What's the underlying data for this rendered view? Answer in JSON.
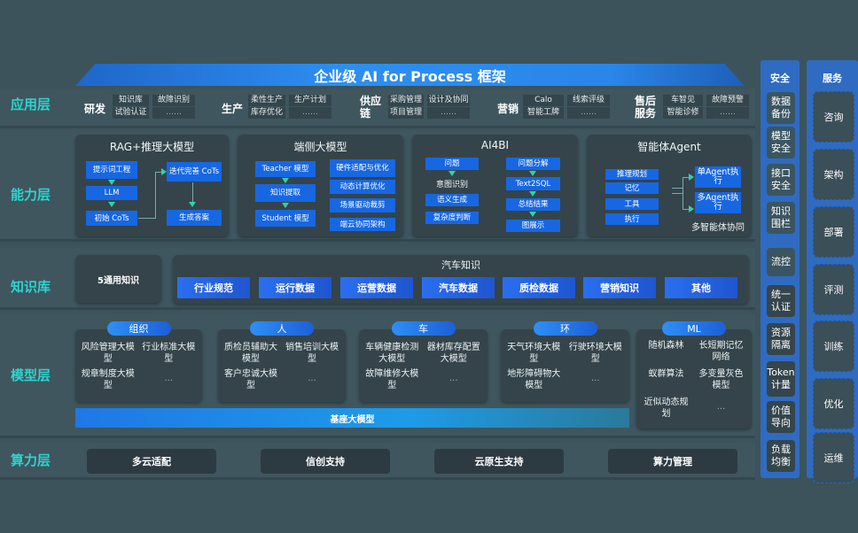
{
  "title": "企业级 AI for Process 框架",
  "layers": {
    "application": "应用层",
    "capability": "能力层",
    "knowledge": "知识库",
    "model": "模型层",
    "compute": "算力层"
  },
  "application_groups": [
    {
      "name": "研发",
      "items": [
        "知识库",
        "试验认证",
        "故障识别",
        "……"
      ]
    },
    {
      "name": "生产",
      "items": [
        "柔性生产",
        "库存优化",
        "生产计划",
        "……"
      ]
    },
    {
      "name": "供应链",
      "items": [
        "采购管理",
        "项目管理",
        "设计及协同",
        "……"
      ]
    },
    {
      "name": "营销",
      "items": [
        "Calo",
        "智能工牌",
        "线索评级",
        "……"
      ]
    },
    {
      "name": "售后服务",
      "items": [
        "车智见",
        "智能诊修",
        "故障预警",
        "……"
      ]
    }
  ],
  "capabilities": {
    "rag": {
      "title": "RAG+推理大模型",
      "boxes": [
        "提示词工程",
        "LLM",
        "初始 CoTs",
        "迭代完善 CoTs",
        "生成答案"
      ]
    },
    "edge": {
      "title": "端侧大模型",
      "boxes": [
        "Teacher 模型",
        "知识提取",
        "Student 模型",
        "硬件适配与优化",
        "动态计算优化",
        "场景驱动裁剪",
        "端云协同架构"
      ]
    },
    "ai4bi": {
      "title": "AI4BI",
      "boxes": [
        "问题",
        "意图识别",
        "语义生成",
        "复杂度判断",
        "问题分解",
        "Text2SQL",
        "总结结果",
        "图展示"
      ]
    },
    "agent": {
      "title": "智能体Agent",
      "boxes": [
        "推理规划",
        "记忆",
        "工具",
        "执行",
        "单Agent执行",
        "多Agent执行"
      ],
      "footer": "多智能体协同"
    }
  },
  "knowledge": {
    "general": "5通用知识",
    "auto_title": "汽车知识",
    "auto_items": [
      "行业规范",
      "运行数据",
      "运营数据",
      "汽车数据",
      "质检数据",
      "营销知识",
      "其他"
    ]
  },
  "model_groups": [
    {
      "name": "组织",
      "items": [
        "风险管理大模型",
        "行业标准大模型",
        "规章制度大模型",
        "..."
      ]
    },
    {
      "name": "人",
      "items": [
        "质检员辅助大模型",
        "销售培训大模型",
        "客户忠诚大模型",
        "..."
      ]
    },
    {
      "name": "车",
      "items": [
        "车辆健康检测大模型",
        "器材库存配置大模型",
        "故障维修大模型",
        "..."
      ]
    },
    {
      "name": "环",
      "items": [
        "天气环境大模型",
        "行驶环境大模型",
        "地形障碍物大模型",
        "..."
      ]
    },
    {
      "name": "ML",
      "items": [
        "随机森林",
        "长短期记忆网络",
        "蚁群算法",
        "多变量灰色模型",
        "近似动态规划",
        "..."
      ]
    }
  ],
  "base_model": "基座大模型",
  "compute": [
    "多云适配",
    "信创支持",
    "云原生支持",
    "算力管理"
  ],
  "security": {
    "title": "安全",
    "items": [
      "数据备份",
      "模型安全",
      "接口安全",
      "知识围栏",
      "流控",
      "统一认证",
      "资源隔离",
      "Token计量",
      "价值导向",
      "负载均衡"
    ]
  },
  "services": {
    "title": "服务",
    "items": [
      "咨询",
      "架构",
      "部署",
      "评测",
      "训练",
      "优化",
      "运维"
    ]
  },
  "colors": {
    "accent_blue": "#1767e3",
    "label_teal": "#2ed3cf",
    "background": "#3d535b"
  }
}
